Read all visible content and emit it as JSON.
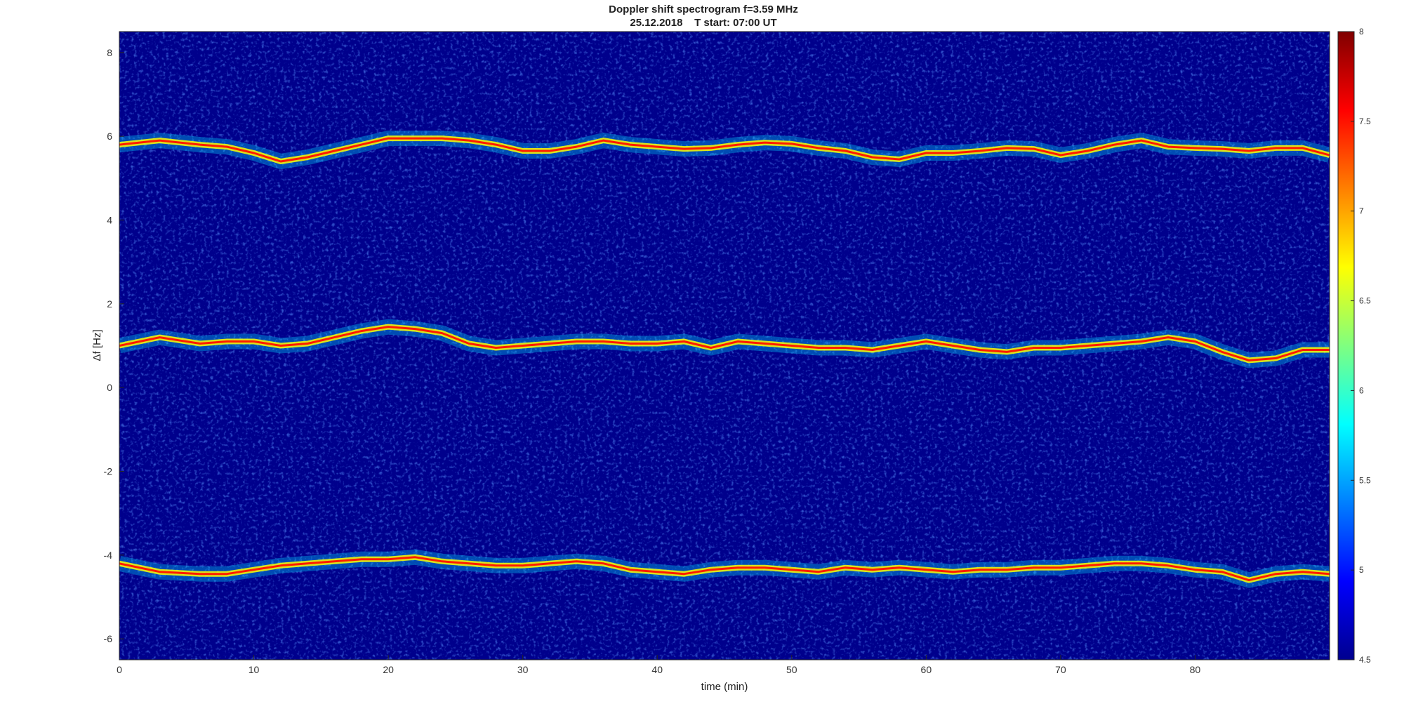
{
  "chart_data": {
    "type": "heatmap",
    "title": "Doppler shift spectrogram f=3.59 MHz",
    "subtitle": "25.12.2018    T start: 07:00 UT",
    "xlabel": "time (min)",
    "ylabel": "Δf [Hz]",
    "xlim": [
      0,
      90
    ],
    "ylim": [
      -6.5,
      8.5
    ],
    "x_ticks": [
      "0",
      "10",
      "20",
      "30",
      "40",
      "50",
      "60",
      "70",
      "80"
    ],
    "y_ticks": [
      "8",
      "6",
      "4",
      "2",
      "0",
      "-2",
      "-4",
      "-6"
    ],
    "colorbar": {
      "range": [
        4.5,
        8
      ],
      "ticks": [
        "8",
        "7.5",
        "7",
        "6.5",
        "6",
        "5.5",
        "5",
        "4.5"
      ],
      "colormap": "jet"
    },
    "grid": false,
    "traces": [
      {
        "x": [
          0,
          3,
          6,
          8,
          10,
          12,
          14,
          16,
          18,
          20,
          22,
          24,
          26,
          28,
          30,
          32,
          34,
          36,
          38,
          40,
          42,
          44,
          46,
          48,
          50,
          52,
          54,
          56,
          58,
          60,
          62,
          64,
          66,
          68,
          70,
          72,
          74,
          76,
          78,
          80,
          82,
          84,
          86,
          88,
          90
        ],
        "y": [
          5.8,
          5.9,
          5.8,
          5.75,
          5.6,
          5.4,
          5.5,
          5.65,
          5.8,
          5.95,
          5.95,
          5.95,
          5.9,
          5.8,
          5.65,
          5.65,
          5.75,
          5.9,
          5.8,
          5.75,
          5.7,
          5.72,
          5.8,
          5.85,
          5.82,
          5.72,
          5.65,
          5.5,
          5.45,
          5.6,
          5.6,
          5.65,
          5.72,
          5.7,
          5.55,
          5.65,
          5.8,
          5.9,
          5.75,
          5.72,
          5.7,
          5.65,
          5.72,
          5.72,
          5.55
        ]
      },
      {
        "x": [
          0,
          3,
          6,
          8,
          10,
          12,
          14,
          16,
          18,
          20,
          22,
          24,
          26,
          28,
          30,
          32,
          34,
          36,
          38,
          40,
          42,
          44,
          46,
          48,
          50,
          52,
          54,
          56,
          58,
          60,
          62,
          64,
          66,
          68,
          70,
          72,
          74,
          76,
          78,
          80,
          82,
          84,
          86,
          88,
          90
        ],
        "y": [
          1.0,
          1.2,
          1.05,
          1.1,
          1.1,
          1.0,
          1.05,
          1.2,
          1.35,
          1.45,
          1.4,
          1.3,
          1.05,
          0.95,
          1.0,
          1.05,
          1.1,
          1.1,
          1.05,
          1.05,
          1.1,
          0.95,
          1.1,
          1.05,
          1.0,
          0.95,
          0.95,
          0.9,
          1.0,
          1.1,
          1.0,
          0.9,
          0.85,
          0.95,
          0.95,
          1.0,
          1.05,
          1.1,
          1.2,
          1.1,
          0.85,
          0.65,
          0.7,
          0.9,
          0.9
        ]
      },
      {
        "x": [
          0,
          3,
          6,
          8,
          10,
          12,
          14,
          16,
          18,
          20,
          22,
          24,
          26,
          28,
          30,
          32,
          34,
          36,
          38,
          40,
          42,
          44,
          46,
          48,
          50,
          52,
          54,
          56,
          58,
          60,
          62,
          64,
          66,
          68,
          70,
          72,
          74,
          76,
          78,
          80,
          82,
          84,
          86,
          88,
          90
        ],
        "y": [
          -4.2,
          -4.4,
          -4.45,
          -4.45,
          -4.35,
          -4.25,
          -4.2,
          -4.15,
          -4.1,
          -4.1,
          -4.05,
          -4.15,
          -4.2,
          -4.25,
          -4.25,
          -4.2,
          -4.15,
          -4.2,
          -4.35,
          -4.4,
          -4.45,
          -4.35,
          -4.3,
          -4.3,
          -4.35,
          -4.4,
          -4.3,
          -4.35,
          -4.3,
          -4.35,
          -4.4,
          -4.35,
          -4.35,
          -4.3,
          -4.3,
          -4.25,
          -4.2,
          -4.2,
          -4.25,
          -4.35,
          -4.4,
          -4.6,
          -4.45,
          -4.4,
          -4.45
        ]
      }
    ]
  }
}
